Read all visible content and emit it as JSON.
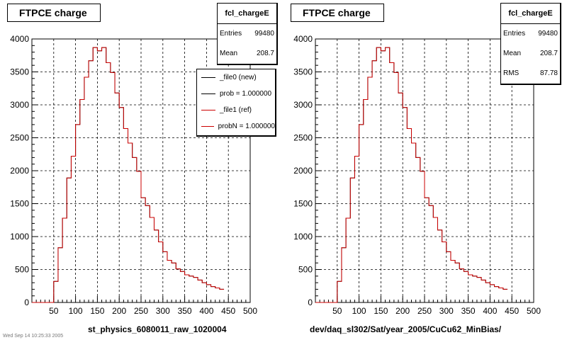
{
  "title": "FTPCE charge",
  "footer_text": "Wed Sep 14 10:25:33 2005",
  "colors": {
    "new": "#000000",
    "ref": "#cc0000",
    "grid": "#000000"
  },
  "legend": [
    {
      "label": "_file0 (new)",
      "color": "#000000"
    },
    {
      "label": "prob = 1.000000",
      "color": "#000000"
    },
    {
      "label": "_file1 (ref)",
      "color": "#cc0000"
    },
    {
      "label": "probN = 1.000000",
      "color": "#cc0000"
    }
  ],
  "panels": [
    {
      "xlabel": "st_physics_6080011_raw_1020004",
      "stats": {
        "name": "fcl_chargeE",
        "rows": [
          {
            "k": "Entries",
            "v": "99480"
          },
          {
            "k": "Mean",
            "v": "208.7"
          }
        ]
      }
    },
    {
      "xlabel": "dev/daq_sl302/Sat/year_2005/CuCu62_MinBias/",
      "stats": {
        "name": "fcl_chargeE",
        "rows": [
          {
            "k": "Entries",
            "v": "99480"
          },
          {
            "k": "Mean",
            "v": "208.7"
          },
          {
            "k": "RMS",
            "v": "87.78"
          }
        ]
      }
    }
  ],
  "chart_data": {
    "type": "line",
    "title": "FTPCE charge",
    "xlim": [
      0,
      500
    ],
    "ylim": [
      0,
      4000
    ],
    "xticks": [
      50,
      100,
      150,
      200,
      250,
      300,
      350,
      400,
      450,
      500
    ],
    "yticks": [
      0,
      500,
      1000,
      1500,
      2000,
      2500,
      3000,
      3500,
      4000
    ],
    "grid": true,
    "bin_width": 10,
    "bin_edges_start": 0,
    "series": [
      {
        "name": "_file1 (ref)",
        "values": [
          0,
          0,
          0,
          0,
          0,
          320,
          830,
          1280,
          1890,
          2220,
          2700,
          3080,
          3420,
          3670,
          3870,
          3820,
          3870,
          3640,
          3490,
          3180,
          2960,
          2640,
          2420,
          2200,
          1990,
          1590,
          1470,
          1290,
          1100,
          920,
          770,
          640,
          600,
          510,
          470,
          420,
          400,
          380,
          340,
          300,
          270,
          240,
          220,
          200
        ]
      },
      {
        "name": "_file0 (new)",
        "values": [
          0,
          0,
          0,
          0,
          0,
          320,
          830,
          1280,
          1890,
          2220,
          2700,
          3080,
          3420,
          3670,
          3870,
          3820,
          3870,
          3640,
          3490,
          3180,
          2960,
          2640,
          2420,
          2200,
          1990,
          1590,
          1470,
          1290,
          1100,
          920,
          770,
          640,
          600,
          510,
          470,
          420,
          400,
          380,
          340,
          300,
          270,
          240,
          220,
          200
        ]
      }
    ]
  }
}
